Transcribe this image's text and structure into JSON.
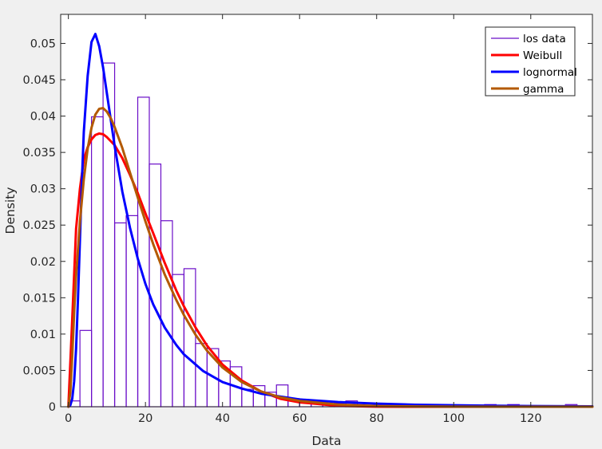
{
  "chart_data": {
    "type": "histogram",
    "xlabel": "Data",
    "ylabel": "Density",
    "xlim": [
      -2,
      136
    ],
    "ylim": [
      0,
      0.054
    ],
    "xticks": [
      0,
      20,
      40,
      60,
      80,
      100,
      120
    ],
    "xtick_labels": [
      "0",
      "20",
      "40",
      "60",
      "80",
      "100",
      "120"
    ],
    "yticks": [
      0,
      0.005,
      0.01,
      0.015,
      0.02,
      0.025,
      0.03,
      0.035,
      0.04,
      0.045,
      0.05
    ],
    "ytick_labels": [
      "0",
      "0.005",
      "0.01",
      "0.015",
      "0.02",
      "0.025",
      "0.03",
      "0.035",
      "0.04",
      "0.045",
      "0.05"
    ],
    "grid": false,
    "legend_position": "top-right",
    "histogram": {
      "name": "los data",
      "color": "#6a0dc8",
      "bin_width": 3,
      "bin_start": 0,
      "densities": [
        0.0008,
        0.0105,
        0.0399,
        0.0473,
        0.0253,
        0.0263,
        0.0426,
        0.0334,
        0.0256,
        0.0182,
        0.019,
        0.0087,
        0.008,
        0.0063,
        0.0055,
        0.0024,
        0.0029,
        0.002,
        0.003,
        0.0011,
        0.0008,
        0.0004,
        0.0004,
        0.0005,
        0.0008,
        0.0001,
        0.0002,
        0.0002,
        0.0002,
        0.0001,
        0.0001,
        0.0001,
        0.0001,
        0.0001,
        0.0001,
        0.0,
        0.0003,
        0.0,
        0.0003,
        0.0,
        0.0,
        0.0,
        0.0,
        0.0003,
        0.0
      ]
    },
    "series": [
      {
        "name": "Weibull",
        "color": "#ff0000",
        "x": [
          0,
          1,
          2,
          3,
          4,
          5,
          6,
          7,
          8,
          9,
          10,
          12,
          14,
          16,
          18,
          20,
          22,
          25,
          28,
          30,
          33,
          36,
          40,
          45,
          50,
          55,
          60,
          70,
          80,
          90,
          100,
          110,
          120,
          136
        ],
        "y": [
          0.0,
          0.012,
          0.0245,
          0.03,
          0.034,
          0.0357,
          0.0368,
          0.0374,
          0.0376,
          0.0375,
          0.0371,
          0.036,
          0.0342,
          0.0319,
          0.0294,
          0.0266,
          0.0239,
          0.0198,
          0.016,
          0.0138,
          0.0109,
          0.0084,
          0.0058,
          0.0036,
          0.0021,
          0.0011,
          0.0006,
          0.00013,
          2e-05,
          0.0,
          0.0,
          0.0,
          0.0,
          0.0
        ]
      },
      {
        "name": "lognormal",
        "color": "#0000ff",
        "x": [
          0,
          0.5,
          1,
          1.5,
          2,
          2.5,
          3,
          3.5,
          4,
          5,
          6,
          7,
          8,
          9,
          10,
          11,
          12,
          14,
          16,
          18,
          20,
          22,
          25,
          28,
          30,
          35,
          40,
          45,
          50,
          60,
          70,
          80,
          90,
          100,
          110,
          120,
          136
        ],
        "y": [
          0.0,
          0.0002,
          0.0011,
          0.0035,
          0.008,
          0.015,
          0.023,
          0.031,
          0.0378,
          0.0455,
          0.0502,
          0.0513,
          0.0496,
          0.0467,
          0.0431,
          0.0395,
          0.0359,
          0.0296,
          0.0246,
          0.0204,
          0.0169,
          0.0141,
          0.0109,
          0.0085,
          0.0072,
          0.0049,
          0.0034,
          0.0025,
          0.0018,
          0.001,
          0.00065,
          0.00042,
          0.00028,
          0.0002,
          0.00014,
          0.0001,
          6e-05
        ]
      },
      {
        "name": "gamma",
        "color": "#b35900",
        "x": [
          0,
          0.5,
          1,
          1.5,
          2,
          3,
          4,
          5,
          6,
          7,
          8,
          9,
          10,
          11,
          12,
          14,
          16,
          18,
          20,
          22,
          25,
          28,
          30,
          33,
          36,
          40,
          45,
          50,
          55,
          60,
          70,
          80,
          90,
          100,
          120,
          136
        ],
        "y": [
          0.0,
          0.002,
          0.007,
          0.013,
          0.018,
          0.0255,
          0.0313,
          0.0355,
          0.0384,
          0.0402,
          0.041,
          0.0411,
          0.0406,
          0.0397,
          0.0385,
          0.0356,
          0.0322,
          0.0288,
          0.0255,
          0.0224,
          0.0182,
          0.0147,
          0.0126,
          0.0099,
          0.0077,
          0.0054,
          0.0034,
          0.0021,
          0.0013,
          0.0008,
          0.0003,
          0.0001,
          4e-05,
          1e-05,
          0.0,
          0.0
        ]
      }
    ]
  }
}
